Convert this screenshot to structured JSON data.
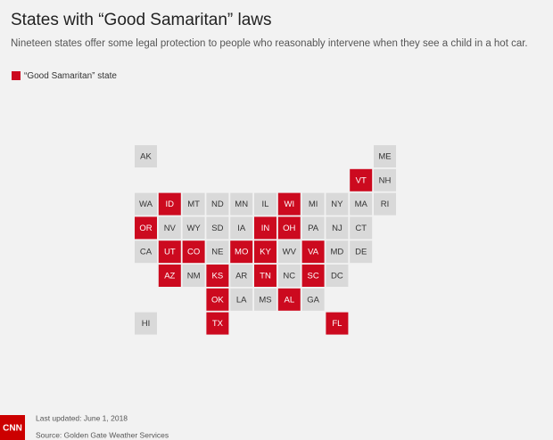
{
  "header": {
    "title": "States with “Good Samaritan” laws",
    "subtitle": "Nineteen states offer some legal protection to people who reasonably intervene when they see a child in a hot car."
  },
  "legend": {
    "label": "“Good Samaritan” state",
    "color": "#cc0a1f"
  },
  "grid": [
    [
      {
        "label": "AK",
        "good_samaritan": false
      },
      null,
      null,
      null,
      null,
      null,
      null,
      null,
      null,
      null,
      {
        "label": "ME",
        "good_samaritan": false
      }
    ],
    [
      null,
      null,
      null,
      null,
      null,
      null,
      null,
      null,
      null,
      {
        "label": "VT",
        "good_samaritan": true
      },
      {
        "label": "NH",
        "good_samaritan": false
      }
    ],
    [
      {
        "label": "WA",
        "good_samaritan": false
      },
      {
        "label": "ID",
        "good_samaritan": true
      },
      {
        "label": "MT",
        "good_samaritan": false
      },
      {
        "label": "ND",
        "good_samaritan": false
      },
      {
        "label": "MN",
        "good_samaritan": false
      },
      {
        "label": "IL",
        "good_samaritan": false
      },
      {
        "label": "WI",
        "good_samaritan": true
      },
      {
        "label": "MI",
        "good_samaritan": false
      },
      {
        "label": "NY",
        "good_samaritan": false
      },
      {
        "label": "MA",
        "good_samaritan": false
      },
      {
        "label": "RI",
        "good_samaritan": false
      }
    ],
    [
      {
        "label": "OR",
        "good_samaritan": true
      },
      {
        "label": "NV",
        "good_samaritan": false
      },
      {
        "label": "WY",
        "good_samaritan": false
      },
      {
        "label": "SD",
        "good_samaritan": false
      },
      {
        "label": "IA",
        "good_samaritan": false
      },
      {
        "label": "IN",
        "good_samaritan": true
      },
      {
        "label": "OH",
        "good_samaritan": true
      },
      {
        "label": "PA",
        "good_samaritan": false
      },
      {
        "label": "NJ",
        "good_samaritan": false
      },
      {
        "label": "CT",
        "good_samaritan": false
      },
      null
    ],
    [
      {
        "label": "CA",
        "good_samaritan": false
      },
      {
        "label": "UT",
        "good_samaritan": true
      },
      {
        "label": "CO",
        "good_samaritan": true
      },
      {
        "label": "NE",
        "good_samaritan": false
      },
      {
        "label": "MO",
        "good_samaritan": true
      },
      {
        "label": "KY",
        "good_samaritan": true
      },
      {
        "label": "WV",
        "good_samaritan": false
      },
      {
        "label": "VA",
        "good_samaritan": true
      },
      {
        "label": "MD",
        "good_samaritan": false
      },
      {
        "label": "DE",
        "good_samaritan": false
      },
      null
    ],
    [
      null,
      {
        "label": "AZ",
        "good_samaritan": true
      },
      {
        "label": "NM",
        "good_samaritan": false
      },
      {
        "label": "KS",
        "good_samaritan": true
      },
      {
        "label": "AR",
        "good_samaritan": false
      },
      {
        "label": "TN",
        "good_samaritan": true
      },
      {
        "label": "NC",
        "good_samaritan": false
      },
      {
        "label": "SC",
        "good_samaritan": true
      },
      {
        "label": "DC",
        "good_samaritan": false
      },
      null,
      null
    ],
    [
      null,
      null,
      null,
      {
        "label": "OK",
        "good_samaritan": true
      },
      {
        "label": "LA",
        "good_samaritan": false
      },
      {
        "label": "MS",
        "good_samaritan": false
      },
      {
        "label": "AL",
        "good_samaritan": true
      },
      {
        "label": "GA",
        "good_samaritan": false
      },
      null,
      null,
      null
    ],
    [
      {
        "label": "HI",
        "good_samaritan": false
      },
      null,
      null,
      {
        "label": "TX",
        "good_samaritan": true
      },
      null,
      null,
      null,
      null,
      {
        "label": "FL",
        "good_samaritan": true
      },
      null,
      null
    ]
  ],
  "footer": {
    "logo": "CNN",
    "updated": "Last updated: June 1, 2018",
    "source": "Source: Golden Gate Weather Services"
  }
}
